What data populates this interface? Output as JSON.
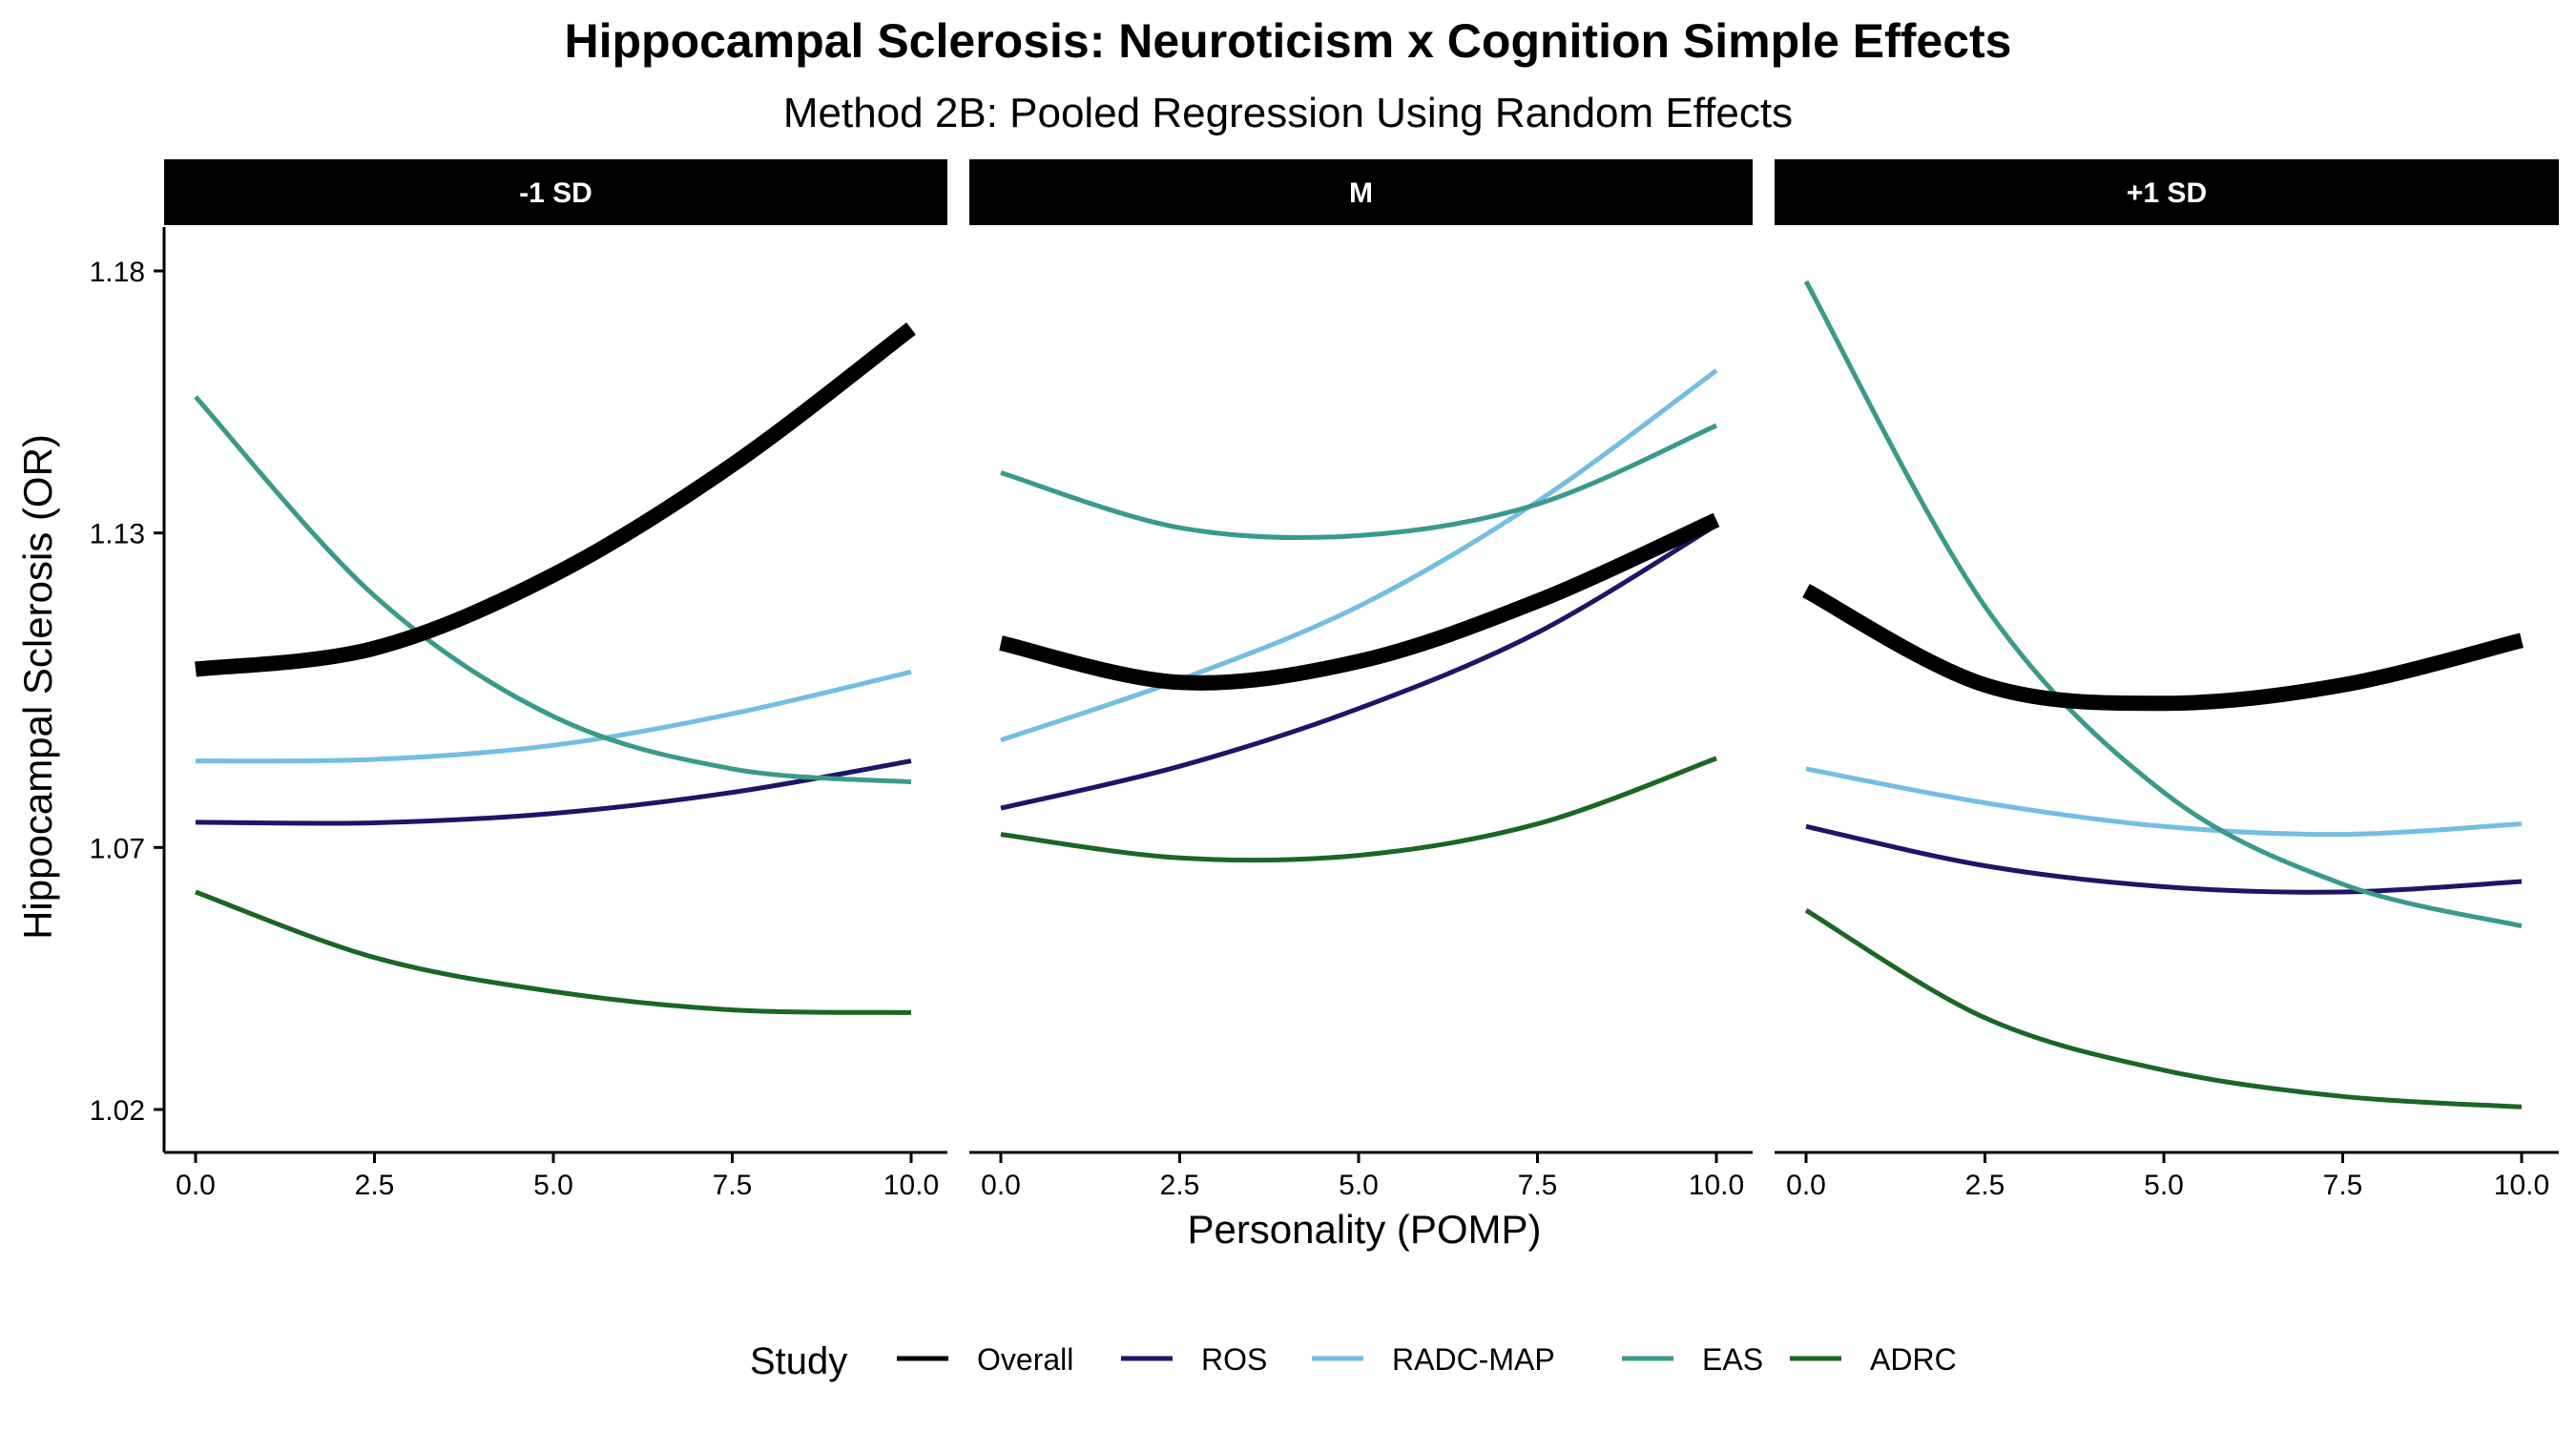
{
  "chart_data": {
    "type": "line",
    "title": "Hippocampal Sclerosis: Neuroticism x Cognition Simple Effects",
    "subtitle": "Method 2B: Pooled Regression Using Random Effects",
    "xlabel": "Personality (POMP)",
    "ylabel": "Hippocampal Sclerosis (OR)",
    "xlim": [
      -0.4,
      10.5
    ],
    "ylim": [
      1.012,
      1.19
    ],
    "x_ticks": [
      0,
      2.5,
      5,
      7.5,
      10
    ],
    "x_tick_labels": [
      "0.0",
      "2.5",
      "5.0",
      "7.5",
      "10.0"
    ],
    "y_ticks": [
      1.02,
      1.07,
      1.13,
      1.18
    ],
    "y_tick_labels": [
      "1.02",
      "1.07",
      "1.13",
      "1.18"
    ],
    "grid": false,
    "legend": {
      "title": "Study",
      "placement": "bottom",
      "entries": [
        "Overall",
        "ROS",
        "RADC-MAP",
        "EAS",
        "ADRC"
      ]
    },
    "series_colors": {
      "Overall": "#000000",
      "ROS": "#1f1466",
      "RADC-MAP": "#74bde3",
      "EAS": "#3a9a89",
      "ADRC": "#1b6624"
    },
    "x": [
      0,
      2.5,
      5,
      7.5,
      10
    ],
    "panels": [
      {
        "label": "-1 SD",
        "series": [
          {
            "name": "Overall",
            "values": [
              1.104,
              1.108,
              1.122,
              1.143,
              1.169
            ]
          },
          {
            "name": "ROS",
            "values": [
              1.0748,
              1.0747,
              1.0765,
              1.0805,
              1.0865
            ]
          },
          {
            "name": "RADC-MAP",
            "values": [
              1.0865,
              1.0868,
              1.0895,
              1.0955,
              1.1035
            ]
          },
          {
            "name": "EAS",
            "values": [
              1.156,
              1.118,
              1.095,
              1.085,
              1.0825
            ]
          },
          {
            "name": "ADRC",
            "values": [
              1.0615,
              1.049,
              1.0425,
              1.039,
              1.0385
            ]
          }
        ]
      },
      {
        "label": "M",
        "series": [
          {
            "name": "Overall",
            "values": [
              1.109,
              1.1015,
              1.1055,
              1.117,
              1.1325
            ]
          },
          {
            "name": "ROS",
            "values": [
              1.0775,
              1.0855,
              1.0965,
              1.111,
              1.1315
            ]
          },
          {
            "name": "RADC-MAP",
            "values": [
              1.0905,
              1.102,
              1.116,
              1.136,
              1.161
            ]
          },
          {
            "name": "EAS",
            "values": [
              1.1415,
              1.131,
              1.1295,
              1.1355,
              1.1505
            ]
          },
          {
            "name": "ADRC",
            "values": [
              1.0725,
              1.068,
              1.0685,
              1.0745,
              1.087
            ]
          }
        ]
      },
      {
        "label": "+1 SD",
        "series": [
          {
            "name": "Overall",
            "values": [
              1.119,
              1.101,
              1.0975,
              1.101,
              1.1095
            ]
          },
          {
            "name": "ROS",
            "values": [
              1.074,
              1.0665,
              1.0625,
              1.0615,
              1.0635
            ]
          },
          {
            "name": "RADC-MAP",
            "values": [
              1.085,
              1.0785,
              1.074,
              1.0725,
              1.0745
            ]
          },
          {
            "name": "EAS",
            "values": [
              1.178,
              1.116,
              1.0805,
              1.063,
              1.055
            ]
          },
          {
            "name": "ADRC",
            "values": [
              1.058,
              1.0375,
              1.0275,
              1.0225,
              1.0205
            ]
          }
        ]
      }
    ]
  }
}
